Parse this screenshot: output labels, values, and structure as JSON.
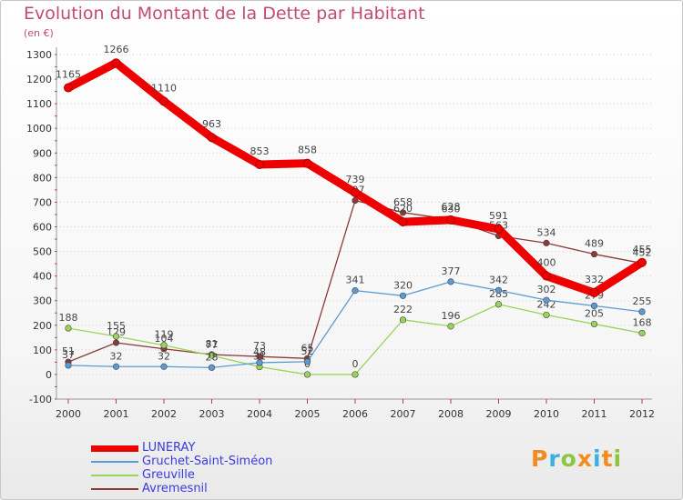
{
  "header": {
    "title": "Evolution du Montant de la Dette par Habitant",
    "subtitle": "(en €)"
  },
  "logo": {
    "text": "Proxiti",
    "letter_colors": [
      "#f28c1e",
      "#3ab0e0",
      "#8cc63f",
      "#f28c1e",
      "#3ab0e0",
      "#f28c1e",
      "#8cc63f"
    ]
  },
  "chart_data": {
    "type": "line",
    "title": "Evolution du Montant de la Dette par Habitant",
    "subtitle": "(en €)",
    "xlabel": "",
    "ylabel": "",
    "x": [
      "2000",
      "2001",
      "2002",
      "2003",
      "2004",
      "2005",
      "2006",
      "2007",
      "2008",
      "2009",
      "2010",
      "2011",
      "2012"
    ],
    "ylim": [
      -100,
      1300
    ],
    "yticks": [
      -100,
      0,
      100,
      200,
      300,
      400,
      500,
      600,
      700,
      800,
      900,
      1000,
      1100,
      1200,
      1300
    ],
    "grid": "horizontal-dotted",
    "legend": "bottom-left",
    "series": [
      {
        "name": "Avremesnil",
        "color": "#8b3a3a",
        "values": [
          51,
          129,
          104,
          81,
          73,
          65,
          707,
          658,
          630,
          563,
          534,
          489,
          452
        ],
        "labels": [
          "51",
          "129",
          "104",
          "81",
          "73",
          "65",
          "707",
          "658",
          "630",
          "563",
          "534",
          "489",
          "452"
        ]
      },
      {
        "name": "Greuville",
        "color": "#9ad45a",
        "values": [
          188,
          155,
          119,
          77,
          31,
          0,
          0,
          222,
          196,
          285,
          242,
          205,
          168
        ],
        "labels": [
          "188",
          "155",
          "119",
          "77",
          "31",
          "0",
          "0",
          "222",
          "196",
          "285",
          "242",
          "205",
          "168"
        ]
      },
      {
        "name": "Gruchet-Saint-Siméon",
        "color": "#5b9bd5",
        "values": [
          37,
          32,
          32,
          28,
          48,
          52,
          341,
          320,
          377,
          342,
          302,
          279,
          255
        ],
        "labels": [
          "37",
          "32",
          "32",
          "28",
          "48",
          "52",
          "341",
          "320",
          "377",
          "342",
          "302",
          "279",
          "255"
        ]
      },
      {
        "name": "LUNERAY",
        "color": "#ee0000",
        "values": [
          1165,
          1266,
          1110,
          963,
          853,
          858,
          739,
          620,
          628,
          591,
          400,
          332,
          455
        ],
        "labels": [
          "1165",
          "1266",
          "1110",
          "963",
          "853",
          "858",
          "739",
          "620",
          "628",
          "591",
          "400",
          "332",
          "455"
        ]
      }
    ],
    "legend_order": [
      "LUNERAY",
      "Gruchet-Saint-Siméon",
      "Greuville",
      "Avremesnil"
    ]
  }
}
